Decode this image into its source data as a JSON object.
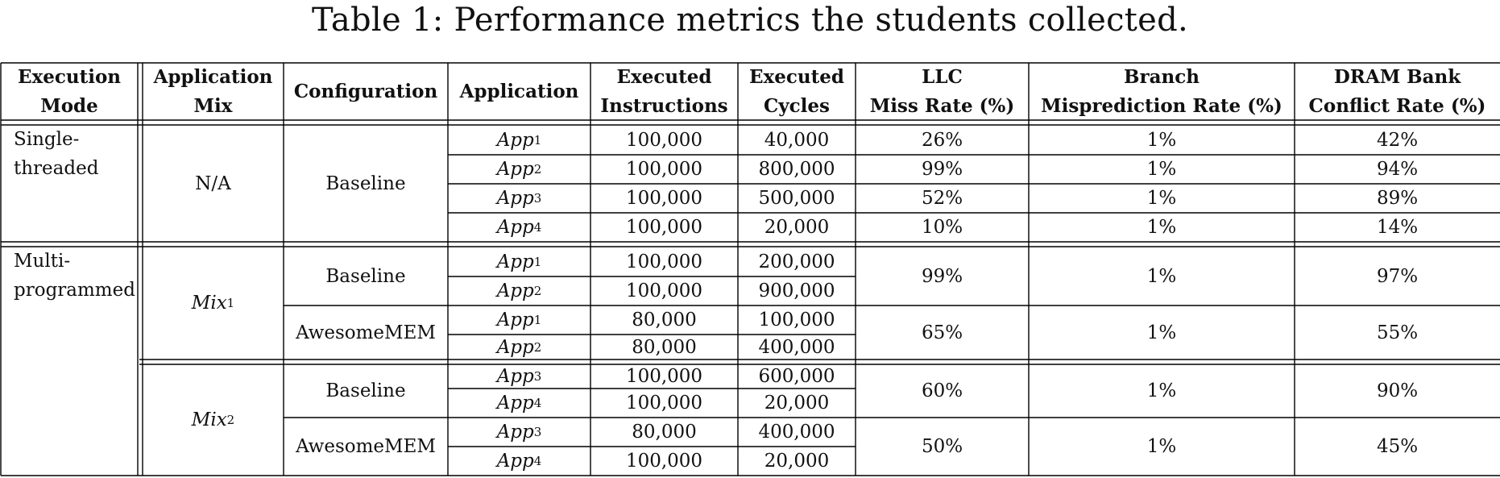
{
  "caption": "Table 1: Performance metrics the students collected.",
  "headers": {
    "execution_mode": [
      "Execution",
      "Mode"
    ],
    "application_mix": [
      "Application",
      "Mix"
    ],
    "configuration": "Configuration",
    "application": "Application",
    "executed_instructions": [
      "Executed",
      "Instructions"
    ],
    "executed_cycles": [
      "Executed",
      "Cycles"
    ],
    "llc_miss_rate": [
      "LLC",
      "Miss Rate (%)"
    ],
    "branch_misprediction_rate": [
      "Branch",
      "Misprediction Rate (%)"
    ],
    "dram_bank_conflict_rate": [
      "DRAM Bank",
      "Conflict Rate (%)"
    ]
  },
  "single_threaded": {
    "mode": [
      "Single-",
      "threaded"
    ],
    "mix": "N/A",
    "configuration": "Baseline",
    "rows": [
      {
        "app": "App",
        "sub": "1",
        "instructions": "100,000",
        "cycles": "40,000",
        "llc": "26%",
        "branch": "1%",
        "dram": "42%"
      },
      {
        "app": "App",
        "sub": "2",
        "instructions": "100,000",
        "cycles": "800,000",
        "llc": "99%",
        "branch": "1%",
        "dram": "94%"
      },
      {
        "app": "App",
        "sub": "3",
        "instructions": "100,000",
        "cycles": "500,000",
        "llc": "52%",
        "branch": "1%",
        "dram": "89%"
      },
      {
        "app": "App",
        "sub": "4",
        "instructions": "100,000",
        "cycles": "20,000",
        "llc": "10%",
        "branch": "1%",
        "dram": "14%"
      }
    ]
  },
  "multi_programmed": {
    "mode": [
      "Multi-",
      "programmed"
    ],
    "mixes": [
      {
        "name": "Mix",
        "sub": "1",
        "configs": [
          {
            "name": "Baseline",
            "llc": "99%",
            "branch": "1%",
            "dram": "97%",
            "rows": [
              {
                "app": "App",
                "sub": "1",
                "instructions": "100,000",
                "cycles": "200,000"
              },
              {
                "app": "App",
                "sub": "2",
                "instructions": "100,000",
                "cycles": "900,000"
              }
            ]
          },
          {
            "name": "AwesomeMEM",
            "llc": "65%",
            "branch": "1%",
            "dram": "55%",
            "rows": [
              {
                "app": "App",
                "sub": "1",
                "instructions": "80,000",
                "cycles": "100,000"
              },
              {
                "app": "App",
                "sub": "2",
                "instructions": "80,000",
                "cycles": "400,000"
              }
            ]
          }
        ]
      },
      {
        "name": "Mix",
        "sub": "2",
        "configs": [
          {
            "name": "Baseline",
            "llc": "60%",
            "branch": "1%",
            "dram": "90%",
            "rows": [
              {
                "app": "App",
                "sub": "3",
                "instructions": "100,000",
                "cycles": "600,000"
              },
              {
                "app": "App",
                "sub": "4",
                "instructions": "100,000",
                "cycles": "20,000"
              }
            ]
          },
          {
            "name": "AwesomeMEM",
            "llc": "50%",
            "branch": "1%",
            "dram": "45%",
            "rows": [
              {
                "app": "App",
                "sub": "3",
                "instructions": "80,000",
                "cycles": "400,000"
              },
              {
                "app": "App",
                "sub": "4",
                "instructions": "100,000",
                "cycles": "20,000"
              }
            ]
          }
        ]
      }
    ]
  }
}
